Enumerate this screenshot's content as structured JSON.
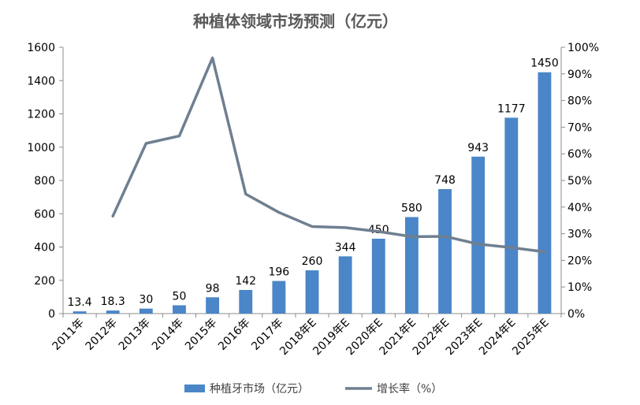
{
  "chart_data": {
    "type": "bar",
    "title": "种植体领域市场预测（亿元）",
    "categories": [
      "2011年",
      "2012年",
      "2013年",
      "2014年",
      "2015年",
      "2016年",
      "2017年",
      "2018年E",
      "2019年E",
      "2020年E",
      "2021年E",
      "2022年E",
      "2023年E",
      "2024年E",
      "2025年E"
    ],
    "series": [
      {
        "name": "种植牙市场（亿元）",
        "type": "bar",
        "axis": "left",
        "color": "#4a86c8",
        "values": [
          13.4,
          18.3,
          30,
          50,
          98,
          142,
          196,
          260,
          344,
          450,
          580,
          748,
          943,
          1177,
          1450
        ],
        "labels": [
          "13.4",
          "18.3",
          "30",
          "50",
          "98",
          "142",
          "196",
          "260",
          "344",
          "450",
          "580",
          "748",
          "943",
          "1177",
          "1450"
        ]
      },
      {
        "name": "增长率（%）",
        "type": "line",
        "axis": "right",
        "color": "#6f7f90",
        "values": [
          null,
          36.6,
          63.9,
          66.7,
          96,
          44.9,
          38,
          32.7,
          32.3,
          30.8,
          28.9,
          29,
          26.1,
          24.8,
          23.2
        ]
      }
    ],
    "yaxis_left": {
      "min": 0,
      "max": 1600,
      "step": 200,
      "ticks": [
        "0",
        "200",
        "400",
        "600",
        "800",
        "1000",
        "1200",
        "1400",
        "1600"
      ]
    },
    "yaxis_right": {
      "min": 0,
      "max": 100,
      "step": 10,
      "ticks": [
        "0%",
        "10%",
        "20%",
        "30%",
        "40%",
        "50%",
        "60%",
        "70%",
        "80%",
        "90%",
        "100%"
      ]
    },
    "grid": false,
    "legend_position": "bottom"
  }
}
